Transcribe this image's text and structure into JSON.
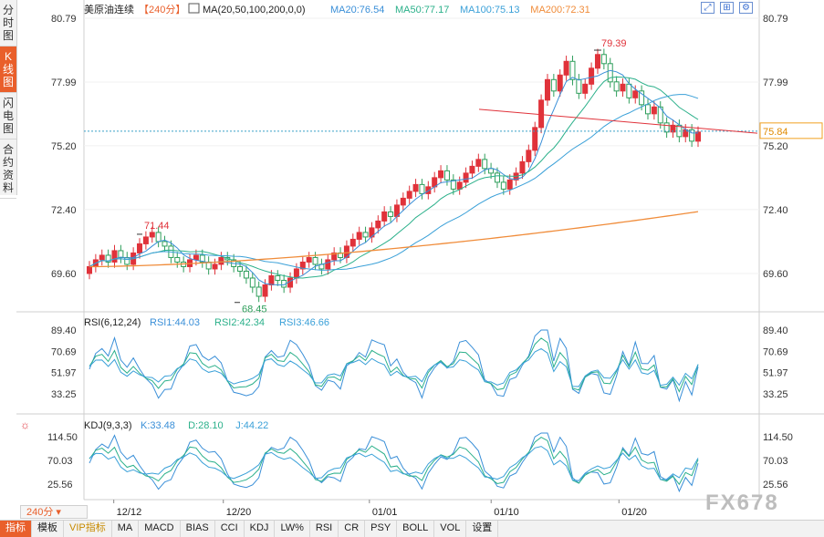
{
  "sidebar_tabs": [
    "分时图",
    "K线图",
    "闪电图",
    "合约资料"
  ],
  "sidebar_active": 1,
  "toolbar_icons": [
    "expand-icon",
    "grid-icon",
    "settings-icon"
  ],
  "toolbar_glyphs": [
    "⤢",
    "⊞",
    "⚙"
  ],
  "main_panel": {
    "symbol": "美原油连续",
    "period": "【240分】",
    "ma_label": "MA(20,50,100,200,0,0)",
    "ma_values": [
      {
        "text": "MA20:76.54",
        "color": "#3a8fd8"
      },
      {
        "text": "MA50:77.17",
        "color": "#2bb08a"
      },
      {
        "text": "MA100:75.13",
        "color": "#3aa0d8"
      },
      {
        "text": "MA200:72.31",
        "color": "#f08c3a"
      }
    ],
    "y_ticks": [
      "80.79",
      "77.99",
      "75.20",
      "72.40",
      "69.60"
    ],
    "high_label": "79.39",
    "high_label_2": "71.44",
    "low_label": "68.45",
    "current_price": "75.84"
  },
  "rsi_panel": {
    "title": "RSI(6,12,24)",
    "values": [
      {
        "text": "RSI1:44.03",
        "color": "#3a8fd8"
      },
      {
        "text": "RSI2:42.34",
        "color": "#2bb08a"
      },
      {
        "text": "RSI3:46.66",
        "color": "#3aa0d8"
      }
    ],
    "y_ticks": [
      "89.40",
      "70.69",
      "51.97",
      "33.25"
    ]
  },
  "kdj_panel": {
    "title": "KDJ(9,3,3)",
    "values": [
      {
        "text": "K:33.48",
        "color": "#3a8fd8"
      },
      {
        "text": "D:28.10",
        "color": "#2bb08a"
      },
      {
        "text": "J:44.22",
        "color": "#3aa0d8"
      }
    ],
    "y_ticks": [
      "114.50",
      "70.03",
      "25.56"
    ]
  },
  "x_labels": [
    "12/12",
    "12/20",
    "01/01",
    "01/10",
    "01/20"
  ],
  "period_selector": "240分",
  "bottom_tabs": [
    "指标",
    "模板",
    "VIP指标",
    "MA",
    "MACD",
    "BIAS",
    "CCI",
    "KDJ",
    "LW%",
    "RSI",
    "CR",
    "PSY",
    "BOLL",
    "VOL",
    "设置"
  ],
  "watermark": "FX678",
  "colors": {
    "up": "#e0323a",
    "down": "#2e9e5b",
    "accent": "#e95f2b"
  },
  "chart_data": {
    "type": "candlestick",
    "x_labels": [
      "12/12",
      "12/20",
      "01/01",
      "01/10",
      "01/20"
    ],
    "ylim": [
      68.0,
      80.79
    ],
    "candles_close": [
      69.9,
      70.2,
      70.4,
      70.1,
      70.6,
      70.3,
      70.0,
      70.5,
      70.9,
      71.2,
      71.4,
      71.0,
      70.8,
      70.3,
      70.1,
      69.9,
      70.2,
      70.4,
      70.1,
      69.8,
      70.0,
      70.3,
      70.2,
      69.9,
      69.7,
      69.4,
      69.0,
      68.6,
      69.1,
      69.5,
      69.3,
      69.0,
      69.4,
      69.8,
      70.1,
      70.3,
      70.0,
      69.8,
      70.2,
      70.5,
      70.3,
      70.8,
      71.1,
      71.4,
      71.2,
      71.6,
      71.9,
      72.3,
      72.1,
      72.6,
      72.9,
      73.2,
      73.5,
      73.1,
      73.4,
      73.8,
      74.1,
      73.7,
      73.3,
      73.6,
      74.0,
      74.3,
      74.6,
      74.2,
      74.0,
      73.6,
      73.3,
      73.7,
      74.0,
      74.5,
      75.0,
      76.0,
      77.2,
      78.1,
      77.6,
      78.3,
      78.9,
      78.1,
      77.5,
      77.9,
      78.6,
      79.2,
      78.8,
      78.0,
      77.6,
      77.9,
      77.3,
      77.6,
      77.0,
      76.6,
      76.9,
      76.2,
      75.8,
      76.1,
      75.6,
      75.9,
      75.4,
      75.8
    ],
    "high": 79.39,
    "low": 68.45,
    "peak_label_value": 71.44,
    "last_price": 75.84,
    "ma": {
      "MA20": 76.54,
      "MA50": 77.17,
      "MA100": 75.13,
      "MA200": 72.31
    },
    "rsi": {
      "RSI1": 44.03,
      "RSI2": 42.34,
      "RSI3": 46.66
    },
    "kdj": {
      "K": 33.48,
      "D": 28.1,
      "J": 44.22
    }
  }
}
